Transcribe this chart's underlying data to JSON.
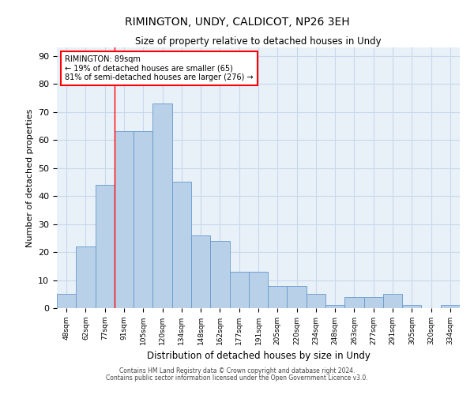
{
  "title": "RIMINGTON, UNDY, CALDICOT, NP26 3EH",
  "subtitle": "Size of property relative to detached houses in Undy",
  "xlabel": "Distribution of detached houses by size in Undy",
  "ylabel": "Number of detached properties",
  "categories": [
    "48sqm",
    "62sqm",
    "77sqm",
    "91sqm",
    "105sqm",
    "120sqm",
    "134sqm",
    "148sqm",
    "162sqm",
    "177sqm",
    "191sqm",
    "205sqm",
    "220sqm",
    "234sqm",
    "248sqm",
    "263sqm",
    "277sqm",
    "291sqm",
    "305sqm",
    "320sqm",
    "334sqm"
  ],
  "values": [
    5,
    22,
    44,
    63,
    63,
    73,
    45,
    26,
    24,
    13,
    13,
    8,
    8,
    5,
    1,
    4,
    4,
    5,
    1,
    0,
    1
  ],
  "bar_color": "#b8d0e8",
  "bar_edge_color": "#6699cc",
  "grid_color": "#c8d8ec",
  "bg_color": "#e8f0f8",
  "annotation_line1": "RIMINGTON: 89sqm",
  "annotation_line2": "← 19% of detached houses are smaller (65)",
  "annotation_line3": "81% of semi-detached houses are larger (276) →",
  "annotation_box_color": "white",
  "annotation_box_edge": "red",
  "footer1": "Contains HM Land Registry data © Crown copyright and database right 2024.",
  "footer2": "Contains public sector information licensed under the Open Government Licence v3.0.",
  "ylim": [
    0,
    93
  ],
  "yticks": [
    0,
    10,
    20,
    30,
    40,
    50,
    60,
    70,
    80,
    90
  ],
  "red_line_index": 2.5
}
